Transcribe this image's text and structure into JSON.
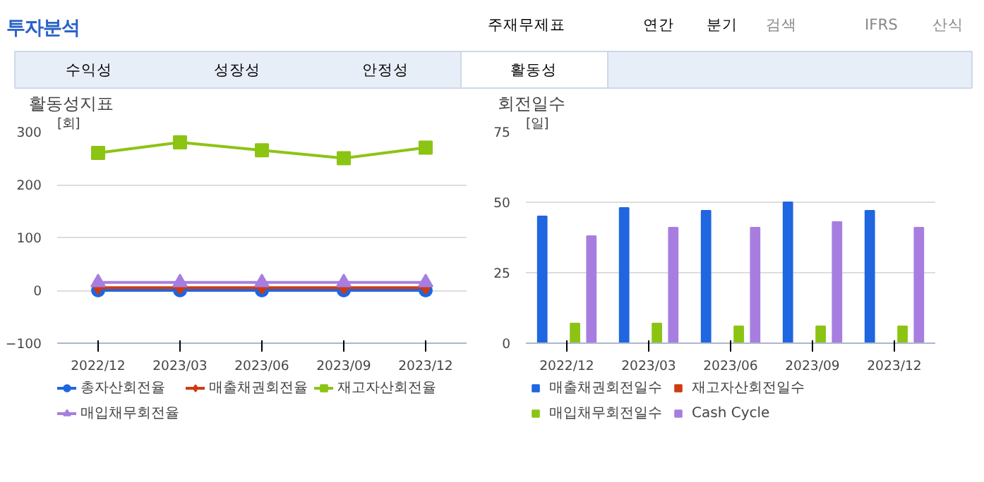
{
  "chart_data": [
    {
      "type": "line",
      "title": "활동성지표",
      "ylabel": "[회]",
      "categories": [
        "2022/12",
        "2023/03",
        "2023/06",
        "2023/09",
        "2023/12"
      ],
      "ylim": [
        -100,
        300
      ],
      "yticks": [
        -100,
        0,
        100,
        200,
        300
      ],
      "grid": "y",
      "legend": "bottom",
      "annotations": [
        "투자분석",
        "주재무제표",
        "연간",
        "분기",
        "검색",
        "IFRS",
        "산식",
        "수익성",
        "성장성",
        "안정성",
        "활동성"
      ],
      "series": [
        {
          "name": "총자산회전율",
          "color": "#1f66e0",
          "marker": "circle",
          "values": [
            0,
            0,
            0,
            0,
            0
          ]
        },
        {
          "name": "매출채권회전율",
          "color": "#d03a10",
          "marker": "diamond",
          "values": [
            5,
            5,
            5,
            5,
            5
          ]
        },
        {
          "name": "재고자산회전율",
          "color": "#8cc414",
          "marker": "square",
          "values": [
            260,
            280,
            265,
            250,
            270
          ]
        },
        {
          "name": "매입채무회전율",
          "color": "#a77ee0",
          "marker": "triangle",
          "values": [
            15,
            15,
            15,
            15,
            15
          ]
        }
      ]
    },
    {
      "type": "bar",
      "title": "회전일수",
      "ylabel": "[일]",
      "categories": [
        "2022/12",
        "2023/03",
        "2023/06",
        "2023/09",
        "2023/12"
      ],
      "ylim": [
        0,
        75
      ],
      "yticks": [
        0,
        25,
        50,
        75
      ],
      "grid": "y",
      "legend": "bottom",
      "series": [
        {
          "name": "매출채권회전일수",
          "color": "#1f66e0",
          "values": [
            45,
            48,
            47,
            50,
            47
          ]
        },
        {
          "name": "재고자산회전일수",
          "color": "#d03a10",
          "values": [
            0,
            0,
            0,
            0,
            0
          ]
        },
        {
          "name": "매입채무회전일수",
          "color": "#8cc414",
          "values": [
            7,
            7,
            6,
            6,
            6
          ]
        },
        {
          "name": "Cash Cycle",
          "color": "#a77ee0",
          "values": [
            38,
            41,
            41,
            43,
            41
          ]
        }
      ]
    }
  ]
}
